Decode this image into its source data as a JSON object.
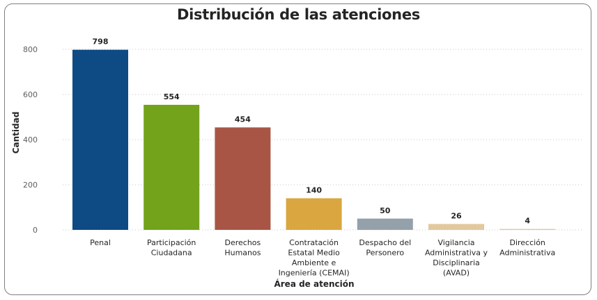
{
  "chart_data": {
    "type": "bar",
    "title": "Distribución de las atenciones",
    "xlabel": "Área de atención",
    "ylabel": "Cantidad",
    "ylim": [
      0,
      800
    ],
    "yticks": [
      0,
      200,
      400,
      600,
      800
    ],
    "grid": true,
    "categories": [
      [
        "Penal"
      ],
      [
        "Participación",
        "Ciudadana"
      ],
      [
        "Derechos",
        "Humanos"
      ],
      [
        "Contratación",
        "Estatal Medio",
        "Ambiente e",
        "Ingeniería (CEMAI)"
      ],
      [
        "Despacho del",
        "Personero"
      ],
      [
        "Vigilancia",
        "Administrativa y",
        "Disciplinaria",
        "(AVAD)"
      ],
      [
        "Dirección",
        "Administrativa"
      ]
    ],
    "values": [
      798,
      554,
      454,
      140,
      50,
      26,
      4
    ],
    "colors": [
      "#0e4a83",
      "#72a31b",
      "#a95546",
      "#d9a640",
      "#95a1aa",
      "#e2c89b",
      "#e8bfa6"
    ]
  }
}
